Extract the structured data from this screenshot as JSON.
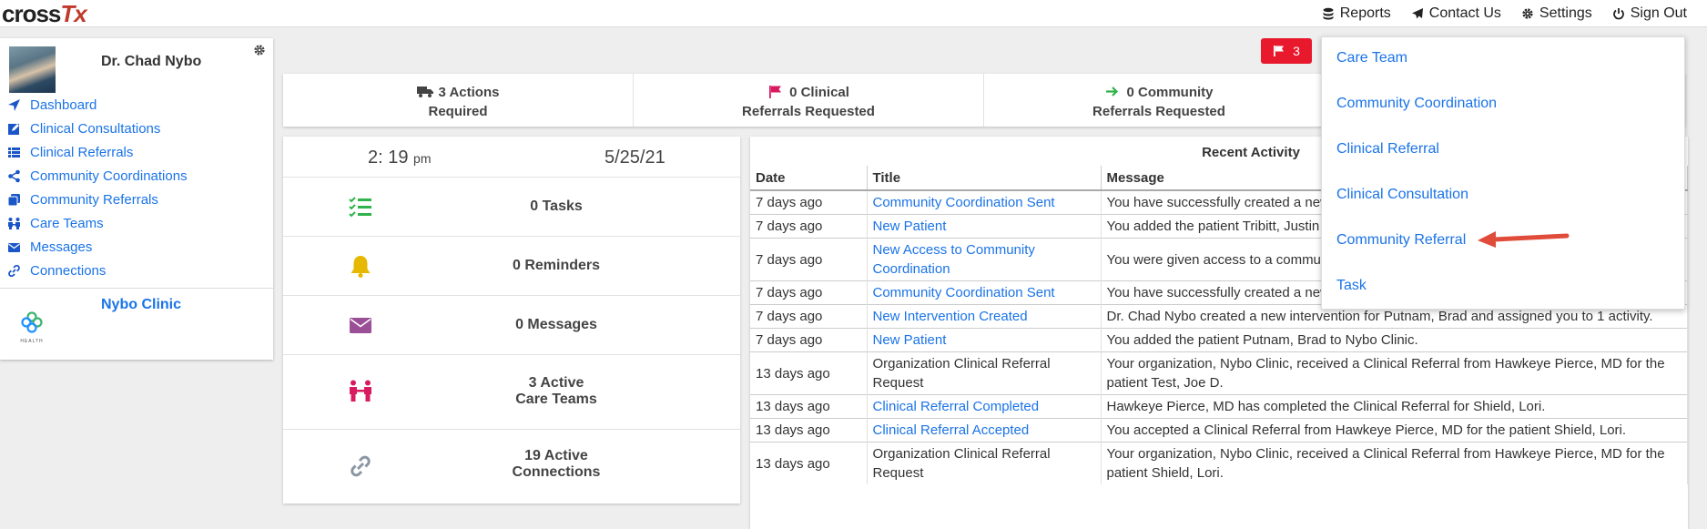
{
  "brand": {
    "name_a": "cross",
    "name_b": "Tx"
  },
  "topnav": {
    "reports": "Reports",
    "contact": "Contact Us",
    "settings": "Settings",
    "signout": "Sign Out"
  },
  "sidebar": {
    "doctor_name": "Dr. Chad Nybo",
    "items": [
      {
        "label": "Dashboard",
        "icon": "location-arrow-icon"
      },
      {
        "label": "Clinical Consultations",
        "icon": "edit-icon"
      },
      {
        "label": "Clinical Referrals",
        "icon": "list-icon"
      },
      {
        "label": "Community Coordinations",
        "icon": "share-icon"
      },
      {
        "label": "Community Referrals",
        "icon": "copy-icon"
      },
      {
        "label": "Care Teams",
        "icon": "people-icon"
      },
      {
        "label": "Messages",
        "icon": "envelope-icon"
      },
      {
        "label": "Connections",
        "icon": "link-icon"
      }
    ],
    "clinic_name": "Nybo Clinic",
    "clinic_logo_text": "HEALTH"
  },
  "flag_badge": {
    "count": "3",
    "color": "#e8192c"
  },
  "summary": {
    "actions_line1": "3 Actions",
    "actions_line2": "Required",
    "clinical_line1": "0 Clinical",
    "clinical_line2": "Referrals Requested",
    "community_line1": "0 Community",
    "community_line2": "Referrals Requested"
  },
  "stats": {
    "time": "2: 19",
    "ampm": "pm",
    "date": "5/25/21",
    "tasks": "0 Tasks",
    "reminders": "0 Reminders",
    "messages": "0 Messages",
    "care_teams_l1": "3 Active",
    "care_teams_l2": "Care Teams",
    "connections_l1": "19 Active",
    "connections_l2": "Connections"
  },
  "activity": {
    "title": "Recent Activity",
    "headers": {
      "date": "Date",
      "title": "Title",
      "message": "Message"
    },
    "rows": [
      {
        "date": "7 days ago",
        "title": "Community Coordination Sent",
        "link": true,
        "message": "You have successfully created a new community coordination for John Mulcahy, Brad Putnam."
      },
      {
        "date": "7 days ago",
        "title": "New Patient",
        "link": true,
        "message": "You added the patient Tribitt, Justin to Nybo Clinic."
      },
      {
        "date": "7 days ago",
        "title": "New Access to Community Coordination",
        "link": true,
        "message": "You were given access to a community coordination by Dr. Chad Nybo."
      },
      {
        "date": "7 days ago",
        "title": "Community Coordination Sent",
        "link": true,
        "message": "You have successfully created a new community coordination for Putnam, Brad."
      },
      {
        "date": "7 days ago",
        "title": "New Intervention Created",
        "link": true,
        "message": "Dr. Chad Nybo created a new intervention for Putnam, Brad and assigned you to 1 activity."
      },
      {
        "date": "7 days ago",
        "title": "New Patient",
        "link": true,
        "message": "You added the patient Putnam, Brad to Nybo Clinic."
      },
      {
        "date": "13 days ago",
        "title": "Organization Clinical Referral Request",
        "link": false,
        "message": "Your organization, Nybo Clinic, received a Clinical Referral from Hawkeye Pierce, MD for the patient Test, Joe D."
      },
      {
        "date": "13 days ago",
        "title": "Clinical Referral Completed",
        "link": true,
        "message": "Hawkeye Pierce, MD has completed the Clinical Referral for Shield, Lori."
      },
      {
        "date": "13 days ago",
        "title": "Clinical Referral Accepted",
        "link": true,
        "message": "You accepted a Clinical Referral from Hawkeye Pierce, MD for the patient Shield, Lori."
      },
      {
        "date": "13 days ago",
        "title": "Organization Clinical Referral Request",
        "link": false,
        "message": "Your organization, Nybo Clinic, received a Clinical Referral from Hawkeye Pierce, MD for the patient Shield, Lori."
      }
    ]
  },
  "dropdown": {
    "items": [
      "Care Team",
      "Community Coordination",
      "Clinical Referral",
      "Clinical Consultation",
      "Community Referral",
      "Task"
    ]
  },
  "colors": {
    "accent": "#1a73e8",
    "arrow": "#e04b3a",
    "tasks_icon": "#2fb34a",
    "bell": "#e6b800",
    "envelope": "#9b4f96",
    "teams": "#d81b60"
  }
}
